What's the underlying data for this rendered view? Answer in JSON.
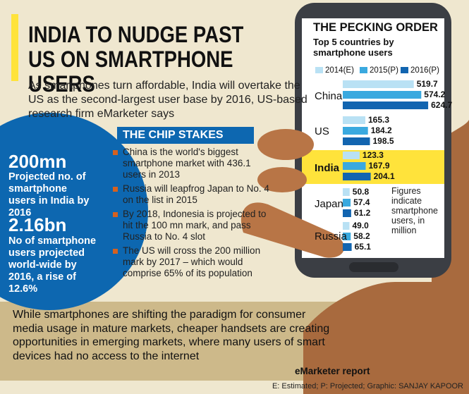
{
  "title": "INDIA TO NUDGE PAST US ON SMARTPHONE USERS",
  "intro": "As smartphones turn affordable, India will overtake the US as the second-largest user base by 2016, US-based research firm eMarketer says",
  "stats": [
    {
      "number": "200mn",
      "text": "Projected no. of smartphone users in India by 2016"
    },
    {
      "number": "2.16bn",
      "text": "No of smartphone users projected world-wide by 2016, a rise of 12.6%"
    }
  ],
  "chip_stakes": {
    "title": "THE CHIP STAKES",
    "items": [
      "China is the world's biggest smartphone market with 436.1 users in 2013",
      "Russia will leapfrog Japan to No. 4 on the list in 2015",
      "By 2018, Indonesia is projected to hit the 100 mn mark, and pass Russia to No. 4 slot",
      "The US will cross the 200 million mark by 2017 – which would comprise 65% of its population"
    ]
  },
  "footer_text": "While smartphones are shifting the paradigm for consumer media usage in mature markets, cheaper handsets are creating opportunities in emerging markets, where many users of smart devices had no access to the internet",
  "source": "eMarketer report",
  "notes": "E: Estimated; P: Projected; Graphic: SANJAY KAPOOR",
  "colors": {
    "bg": "#efe7cf",
    "blue_circle": "#0d67b0",
    "footer_band": "#cdb98a",
    "highlight": "#ffe33b",
    "bullet": "#d5611f",
    "skin": "#a86a3e"
  },
  "chart_data": {
    "type": "bar",
    "orientation": "horizontal",
    "title": "THE PECKING ORDER",
    "subtitle": "Top 5 countries by smartphone users",
    "categories": [
      "China",
      "US",
      "India",
      "Japan",
      "Russia"
    ],
    "series": [
      {
        "name": "2014(E)",
        "color": "#b9e1f4",
        "values": [
          519.7,
          165.3,
          123.3,
          50.8,
          49.0
        ],
        "labels": [
          "519.7",
          "165.3",
          "123.3",
          "50.8",
          "49.0"
        ]
      },
      {
        "name": "2015(P)",
        "color": "#3aa9df",
        "values": [
          574.2,
          184.2,
          167.9,
          57.4,
          58.2
        ],
        "labels": [
          "574.2",
          "184.2",
          "167.9",
          "57.4",
          "58.2"
        ]
      },
      {
        "name": "2016(P)",
        "color": "#1265b0",
        "values": [
          624.7,
          198.5,
          204.1,
          61.2,
          65.1
        ],
        "labels": [
          "624.7",
          "198.5",
          "204.1",
          "61.2",
          "65.1"
        ]
      }
    ],
    "highlight_category": "India",
    "note": "Figures indicate smartphone users, in million",
    "grid": false,
    "legend_position": "top"
  }
}
